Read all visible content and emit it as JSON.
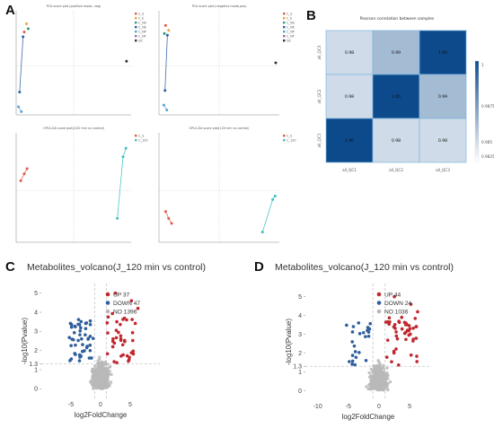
{
  "panel_labels": [
    "A",
    "B",
    "C",
    "D"
  ],
  "chart_data": [
    {
      "type": "scatter",
      "panel": "A1",
      "title": "PCA score plot (positive mode, neg)",
      "legend": [
        "C_S",
        "C_E",
        "C_NS",
        "C_NE",
        "C_NP",
        "C_NF",
        "QC"
      ],
      "colors": [
        "#e0584a",
        "#f0a23a",
        "#2c9a7a",
        "#2b5fa8",
        "#55a4d8",
        "#8e6bb8",
        "#333333"
      ],
      "points": [
        {
          "x": -8.6,
          "y": 2.1,
          "g": 0
        },
        {
          "x": -8.2,
          "y": 2.6,
          "g": 1
        },
        {
          "x": -7.9,
          "y": 2.3,
          "g": 2
        },
        {
          "x": -8.8,
          "y": 1.8,
          "g": 3
        },
        {
          "x": -9.4,
          "y": -1.6,
          "g": 3
        },
        {
          "x": -9.6,
          "y": -2.5,
          "g": 4
        },
        {
          "x": -9.1,
          "y": -2.8,
          "g": 4
        },
        {
          "x": 9.2,
          "y": 0.3,
          "g": 6
        }
      ],
      "xlim": [
        -10,
        10
      ],
      "ylim": [
        -3,
        3.4
      ]
    },
    {
      "type": "scatter",
      "panel": "A2",
      "title": "PCA score plot (negative mode,pos)",
      "legend": [
        "C_S",
        "C_E",
        "C_NS",
        "C_NE",
        "C_NP",
        "C_NF",
        "QC"
      ],
      "colors": [
        "#e0584a",
        "#f0a23a",
        "#2c9a7a",
        "#2b5fa8",
        "#55a4d8",
        "#8e6bb8",
        "#333333"
      ],
      "points": [
        {
          "x": -8.9,
          "y": 2.5,
          "g": 0
        },
        {
          "x": -8.4,
          "y": 2.2,
          "g": 1
        },
        {
          "x": -9.1,
          "y": 2.0,
          "g": 2
        },
        {
          "x": -8.6,
          "y": 1.9,
          "g": 3
        },
        {
          "x": -9.0,
          "y": -1.5,
          "g": 3
        },
        {
          "x": -9.2,
          "y": -2.4,
          "g": 4
        },
        {
          "x": -8.7,
          "y": -2.7,
          "g": 4
        },
        {
          "x": 9.4,
          "y": 0.2,
          "g": 6
        }
      ],
      "xlim": [
        -10,
        10
      ],
      "ylim": [
        -3,
        3.4
      ]
    },
    {
      "type": "scatter",
      "panel": "A3",
      "title": "OPLS-DA score plot(J120 min vs control)",
      "legend": [
        "C_S",
        "C_120"
      ],
      "colors": [
        "#e0584a",
        "#3cc0c0"
      ],
      "points": [
        {
          "x": -9.2,
          "y": 0.6,
          "g": 0
        },
        {
          "x": -8.6,
          "y": 1.0,
          "g": 0
        },
        {
          "x": -8.1,
          "y": 1.3,
          "g": 0
        },
        {
          "x": 7.6,
          "y": -1.6,
          "g": 1
        },
        {
          "x": 8.6,
          "y": 2.0,
          "g": 1
        },
        {
          "x": 9.1,
          "y": 2.5,
          "g": 1
        }
      ],
      "xlim": [
        -10,
        10
      ],
      "ylim": [
        -3,
        3.4
      ]
    },
    {
      "type": "scatter",
      "panel": "A4",
      "title": "OPLS-DA score plot(120 min vs control)",
      "legend": [
        "C_S",
        "C_120"
      ],
      "colors": [
        "#e0584a",
        "#3cc0c0"
      ],
      "points": [
        {
          "x": -8.9,
          "y": -1.2,
          "g": 0
        },
        {
          "x": -8.4,
          "y": -1.6,
          "g": 0
        },
        {
          "x": -7.9,
          "y": -1.9,
          "g": 0
        },
        {
          "x": 7.2,
          "y": -2.4,
          "g": 1
        },
        {
          "x": 8.9,
          "y": -0.5,
          "g": 1
        },
        {
          "x": 9.3,
          "y": -0.3,
          "g": 1
        }
      ],
      "xlim": [
        -10,
        10
      ],
      "ylim": [
        -3,
        3.4
      ]
    },
    {
      "type": "heatmap",
      "panel": "B",
      "title": "Pearson correlation between samples",
      "x_labels": [
        "all_QC1",
        "all_QC2",
        "all_QC3"
      ],
      "y_labels": [
        "all_QC3",
        "all_QC2",
        "all_QC1"
      ],
      "values": [
        [
          0.98,
          0.99,
          1.0
        ],
        [
          0.98,
          1.0,
          0.99
        ],
        [
          1.0,
          0.98,
          0.98
        ]
      ],
      "colorbar_ticks": [
        "1",
        "0.9875",
        "0.985",
        "0.9825"
      ],
      "color_low": "#ffffff",
      "color_high": "#0d4a8c"
    },
    {
      "type": "scatter",
      "panel": "C",
      "title": "Metabolites_volcano(J_120 min vs control)",
      "xlabel": "log2FoldChange",
      "ylabel": "-log10(Pvalue)",
      "xlim": [
        -10,
        10
      ],
      "ylim": [
        -0.5,
        5.5
      ],
      "x_ticks": [
        -5,
        0,
        5
      ],
      "y_ticks": [
        0,
        1,
        1.3,
        2,
        3,
        4,
        5
      ],
      "threshold_y": 1.3,
      "threshold_x": [
        -1,
        1
      ],
      "legend": [
        {
          "label": "UP 37",
          "color": "#c0282f"
        },
        {
          "label": "DOWN 47",
          "color": "#2f5e9c"
        },
        {
          "label": "NO 1396",
          "color": "#b8b8b8"
        }
      ],
      "point_counts": {
        "up": 37,
        "down": 47,
        "no": 1396
      }
    },
    {
      "type": "scatter",
      "panel": "D",
      "title": "Metabolites_volcano(J_120 min vs control)",
      "xlabel": "log2FoldChange",
      "ylabel": "-log10(Pvalue)",
      "xlim": [
        -12,
        8.5
      ],
      "ylim": [
        -0.5,
        5.7
      ],
      "x_ticks": [
        -10,
        -5,
        0,
        5
      ],
      "y_ticks": [
        0,
        1,
        1.3,
        2,
        3,
        4,
        5
      ],
      "threshold_y": 1.3,
      "threshold_x": [
        -1,
        1
      ],
      "legend": [
        {
          "label": "UP 44",
          "color": "#c0282f"
        },
        {
          "label": "DOWN 24",
          "color": "#2f5e9c"
        },
        {
          "label": "NO 1036",
          "color": "#b8b8b8"
        }
      ],
      "point_counts": {
        "up": 44,
        "down": 24,
        "no": 1036
      }
    }
  ]
}
